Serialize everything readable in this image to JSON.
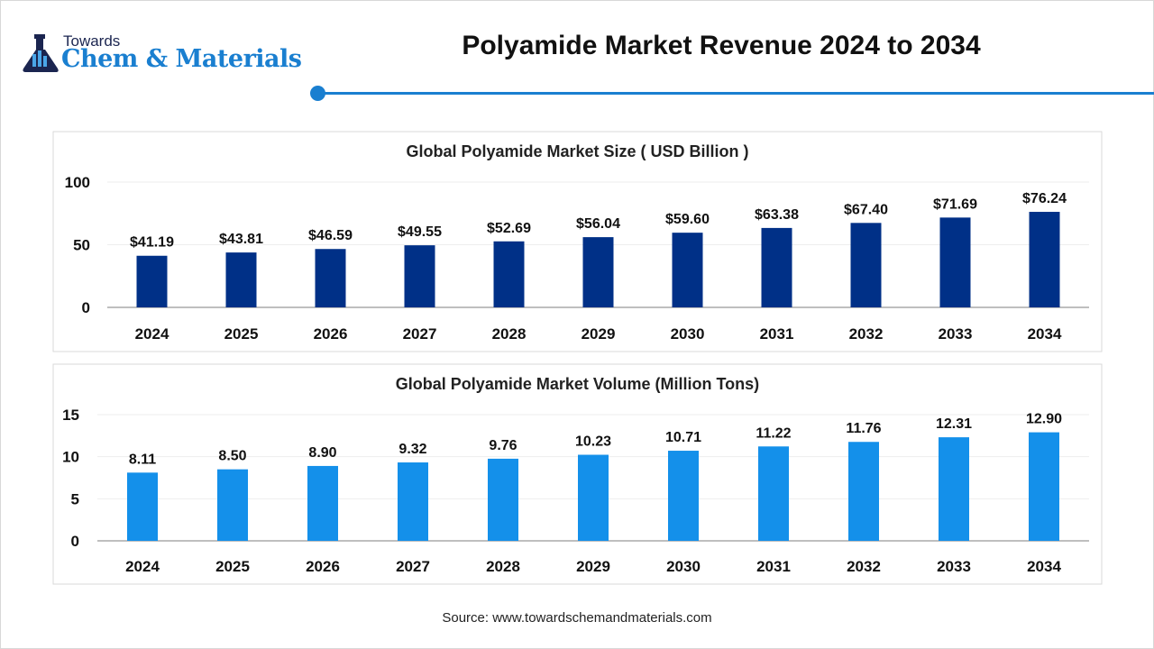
{
  "logo": {
    "line1": "Towards",
    "line2": "Chem & Materials"
  },
  "header": {
    "title": "Polyamide Market Revenue 2024 to 2034"
  },
  "source": "Source: www.towardschemandmaterials.com",
  "chart_data": [
    {
      "type": "bar",
      "title": "Global Polyamide Market Size ( USD Billion )",
      "categories": [
        "2024",
        "2025",
        "2026",
        "2027",
        "2028",
        "2029",
        "2030",
        "2031",
        "2032",
        "2033",
        "2034"
      ],
      "values": [
        41.19,
        43.81,
        46.59,
        49.55,
        52.69,
        56.04,
        59.6,
        63.38,
        67.4,
        71.69,
        76.24
      ],
      "labels": [
        "$41.19",
        "$43.81",
        "$46.59",
        "$49.55",
        "$52.69",
        "$56.04",
        "$59.60",
        "$63.38",
        "$67.40",
        "$71.69",
        "$76.24"
      ],
      "ylim": [
        0,
        100
      ],
      "yticks": [
        0,
        50,
        100
      ],
      "color": "#003087",
      "grid": true
    },
    {
      "type": "bar",
      "title": "Global Polyamide Market Volume (Million Tons)",
      "categories": [
        "2024",
        "2025",
        "2026",
        "2027",
        "2028",
        "2029",
        "2030",
        "2031",
        "2032",
        "2033",
        "2034"
      ],
      "values": [
        8.11,
        8.5,
        8.9,
        9.32,
        9.76,
        10.23,
        10.71,
        11.22,
        11.76,
        12.31,
        12.9
      ],
      "labels": [
        "8.11",
        "8.50",
        "8.90",
        "9.32",
        "9.76",
        "10.23",
        "10.71",
        "11.22",
        "11.76",
        "12.31",
        "12.90"
      ],
      "ylim": [
        0,
        15
      ],
      "yticks": [
        0,
        5,
        10,
        15
      ],
      "color": "#1490ea",
      "grid": true
    }
  ]
}
